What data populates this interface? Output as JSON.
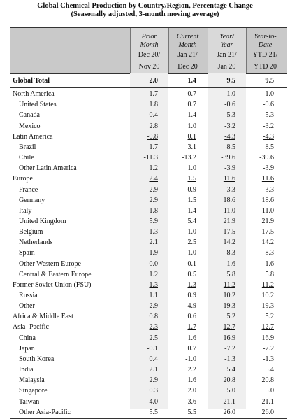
{
  "title_lines": [
    "Global Chemical Production by Country/Region, Percentage Change",
    "(Seasonally adjusted, 3-month moving average)"
  ],
  "columns": [
    {
      "line1": "Prior",
      "line2": "Month",
      "sub1": "Dec 20/",
      "sub2": "Nov 20"
    },
    {
      "line1": "Current",
      "line2": "Month",
      "sub1": "Jan 21/",
      "sub2": "Dec 20"
    },
    {
      "line1": "Year/",
      "line2": "Year",
      "sub1": "Jan 21/",
      "sub2": "Jan 20"
    },
    {
      "line1": "Year-to-",
      "line2": "Date",
      "sub1": "YTD 21/",
      "sub2": "YTD 20"
    }
  ],
  "rows": [
    {
      "label": "Global Total",
      "indent": 0,
      "bold": true,
      "underline": false,
      "values": [
        "2.0",
        "1.4",
        "9.5",
        "9.5"
      ]
    },
    {
      "label": "North America",
      "indent": 0,
      "bold": false,
      "underline": true,
      "values": [
        "1.7",
        "0.7",
        "-1.0",
        "-1.0"
      ]
    },
    {
      "label": "United States",
      "indent": 1,
      "bold": false,
      "underline": false,
      "values": [
        "1.8",
        "0.7",
        "-0.6",
        "-0.6"
      ]
    },
    {
      "label": "Canada",
      "indent": 1,
      "bold": false,
      "underline": false,
      "values": [
        "-0.4",
        "-1.4",
        "-5.3",
        "-5.3"
      ]
    },
    {
      "label": "Mexico",
      "indent": 1,
      "bold": false,
      "underline": false,
      "values": [
        "2.8",
        "1.0",
        "-3.2",
        "-3.2"
      ]
    },
    {
      "label": "Latin America",
      "indent": 0,
      "bold": false,
      "underline": true,
      "values": [
        "-0.8",
        "0.1",
        "-4.3",
        "-4.3"
      ]
    },
    {
      "label": "Brazil",
      "indent": 1,
      "bold": false,
      "underline": false,
      "values": [
        "1.7",
        "3.1",
        "8.5",
        "8.5"
      ]
    },
    {
      "label": "Chile",
      "indent": 1,
      "bold": false,
      "underline": false,
      "values": [
        "-11.3",
        "-13.2",
        "-39.6",
        "-39.6"
      ]
    },
    {
      "label": "Other Latin America",
      "indent": 1,
      "bold": false,
      "underline": false,
      "values": [
        "1.2",
        "1.0",
        "-3.9",
        "-3.9"
      ]
    },
    {
      "label": "Europe",
      "indent": 0,
      "bold": false,
      "underline": true,
      "values": [
        "2.4",
        "1.5",
        "11.6",
        "11.6"
      ]
    },
    {
      "label": "France",
      "indent": 1,
      "bold": false,
      "underline": false,
      "values": [
        "2.9",
        "0.9",
        "3.3",
        "3.3"
      ]
    },
    {
      "label": "Germany",
      "indent": 1,
      "bold": false,
      "underline": false,
      "values": [
        "2.9",
        "1.5",
        "18.6",
        "18.6"
      ]
    },
    {
      "label": "Italy",
      "indent": 1,
      "bold": false,
      "underline": false,
      "values": [
        "1.8",
        "1.4",
        "11.0",
        "11.0"
      ]
    },
    {
      "label": "United Kingdom",
      "indent": 1,
      "bold": false,
      "underline": false,
      "values": [
        "5.9",
        "5.4",
        "21.9",
        "21.9"
      ]
    },
    {
      "label": "Belgium",
      "indent": 1,
      "bold": false,
      "underline": false,
      "values": [
        "1.3",
        "1.0",
        "17.5",
        "17.5"
      ]
    },
    {
      "label": "Netherlands",
      "indent": 1,
      "bold": false,
      "underline": false,
      "values": [
        "2.1",
        "2.5",
        "14.2",
        "14.2"
      ]
    },
    {
      "label": "Spain",
      "indent": 1,
      "bold": false,
      "underline": false,
      "values": [
        "1.9",
        "1.0",
        "8.3",
        "8.3"
      ]
    },
    {
      "label": "Other Western Europe",
      "indent": 1,
      "bold": false,
      "underline": false,
      "values": [
        "0.0",
        "0.1",
        "1.6",
        "1.6"
      ]
    },
    {
      "label": "Central & Eastern Europe",
      "indent": 1,
      "bold": false,
      "underline": false,
      "values": [
        "1.2",
        "0.5",
        "5.8",
        "5.8"
      ]
    },
    {
      "label": "Former Soviet Union (FSU)",
      "indent": 0,
      "bold": false,
      "underline": true,
      "values": [
        "1.3",
        "1.3",
        "11.2",
        "11.2"
      ]
    },
    {
      "label": "Russia",
      "indent": 1,
      "bold": false,
      "underline": false,
      "values": [
        "1.1",
        "0.9",
        "10.2",
        "10.2"
      ]
    },
    {
      "label": "Other",
      "indent": 1,
      "bold": false,
      "underline": false,
      "values": [
        "2.9",
        "4.9",
        "19.3",
        "19.3"
      ]
    },
    {
      "label": "Africa & Middle East",
      "indent": 0,
      "bold": false,
      "underline": false,
      "values": [
        "0.8",
        "0.6",
        "5.2",
        "5.2"
      ]
    },
    {
      "label": "Asia- Pacific",
      "indent": 0,
      "bold": false,
      "underline": true,
      "values": [
        "2.3",
        "1.7",
        "12.7",
        "12.7"
      ]
    },
    {
      "label": "China",
      "indent": 1,
      "bold": false,
      "underline": false,
      "values": [
        "2.5",
        "1.6",
        "16.9",
        "16.9"
      ]
    },
    {
      "label": "Japan",
      "indent": 1,
      "bold": false,
      "underline": false,
      "values": [
        "-0.1",
        "0.7",
        "-7.2",
        "-7.2"
      ]
    },
    {
      "label": "South Korea",
      "indent": 1,
      "bold": false,
      "underline": false,
      "values": [
        "0.4",
        "-1.0",
        "-1.3",
        "-1.3"
      ]
    },
    {
      "label": "India",
      "indent": 1,
      "bold": false,
      "underline": false,
      "values": [
        "2.1",
        "2.2",
        "5.4",
        "5.4"
      ]
    },
    {
      "label": "Malaysia",
      "indent": 1,
      "bold": false,
      "underline": false,
      "values": [
        "2.9",
        "1.6",
        "20.8",
        "20.8"
      ]
    },
    {
      "label": "Singapore",
      "indent": 1,
      "bold": false,
      "underline": false,
      "values": [
        "0.3",
        "2.0",
        "5.0",
        "5.0"
      ]
    },
    {
      "label": "Taiwan",
      "indent": 1,
      "bold": false,
      "underline": false,
      "values": [
        "4.0",
        "3.6",
        "21.1",
        "21.1"
      ]
    },
    {
      "label": "Other Asia-Pacific",
      "indent": 1,
      "bold": false,
      "underline": false,
      "values": [
        "5.5",
        "5.5",
        "26.0",
        "26.0"
      ]
    }
  ]
}
